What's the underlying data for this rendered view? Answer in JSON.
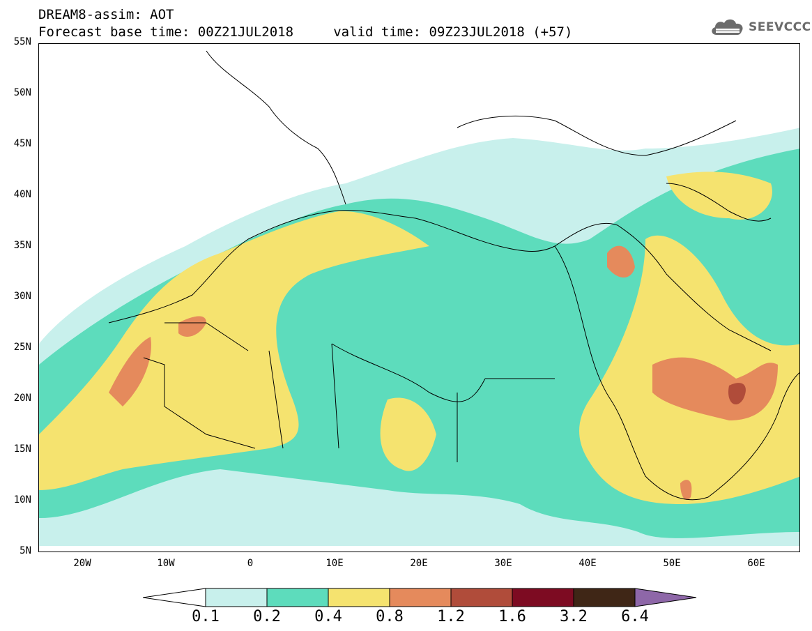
{
  "header": {
    "line1": "DREAM8-assim: AOT",
    "line2": "Forecast base time: 00Z21JUL2018     valid time: 09Z23JUL2018 (+57)"
  },
  "logo": {
    "text": "SEEVCCC",
    "icon": "cloud-icon",
    "color": "#6b6b6b"
  },
  "map": {
    "lat_labels": [
      "55N",
      "50N",
      "45N",
      "40N",
      "35N",
      "30N",
      "25N",
      "20N",
      "15N",
      "10N",
      "5N"
    ],
    "lon_labels": [
      "20W",
      "10W",
      "0",
      "10E",
      "20E",
      "30E",
      "40E",
      "50E",
      "60E"
    ],
    "extent": {
      "lon_min": -25,
      "lon_max": 65,
      "lat_min": 5,
      "lat_max": 55
    }
  },
  "colorbar": {
    "labels": [
      "0.1",
      "0.2",
      "0.4",
      "0.8",
      "1.2",
      "1.6",
      "3.2",
      "6.4"
    ],
    "colors": [
      "#c8f0ec",
      "#5ddcbc",
      "#f5e36f",
      "#e58a5c",
      "#b04c3a",
      "#7d0b22",
      "#3f2616",
      "#8e67a8"
    ],
    "under_color": "#ffffff"
  }
}
